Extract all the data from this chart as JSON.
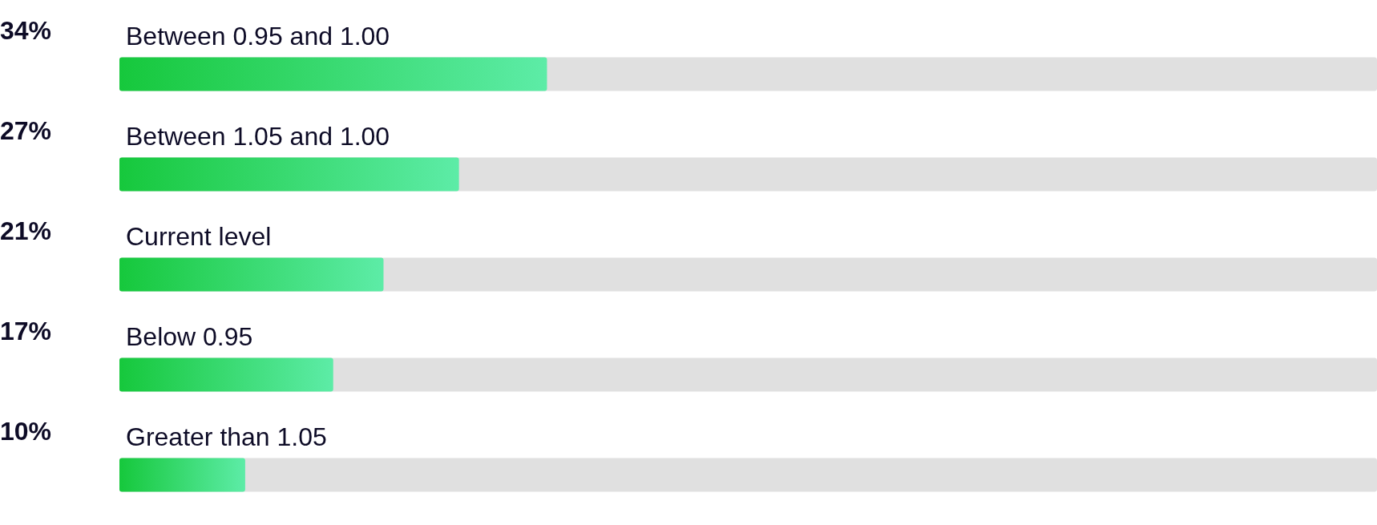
{
  "chart_data": {
    "type": "bar",
    "orientation": "horizontal",
    "categories": [
      "Between 0.95 and 1.00",
      "Between 1.05 and 1.00",
      "Current level",
      "Below 0.95",
      "Greater than 1.05"
    ],
    "values": [
      34,
      27,
      21,
      17,
      10
    ],
    "value_labels": [
      "34%",
      "27%",
      "21%",
      "17%",
      "10%"
    ],
    "color": "#16c83c",
    "xlim": [
      0,
      100
    ],
    "tick_labels": "y",
    "grid": false
  }
}
